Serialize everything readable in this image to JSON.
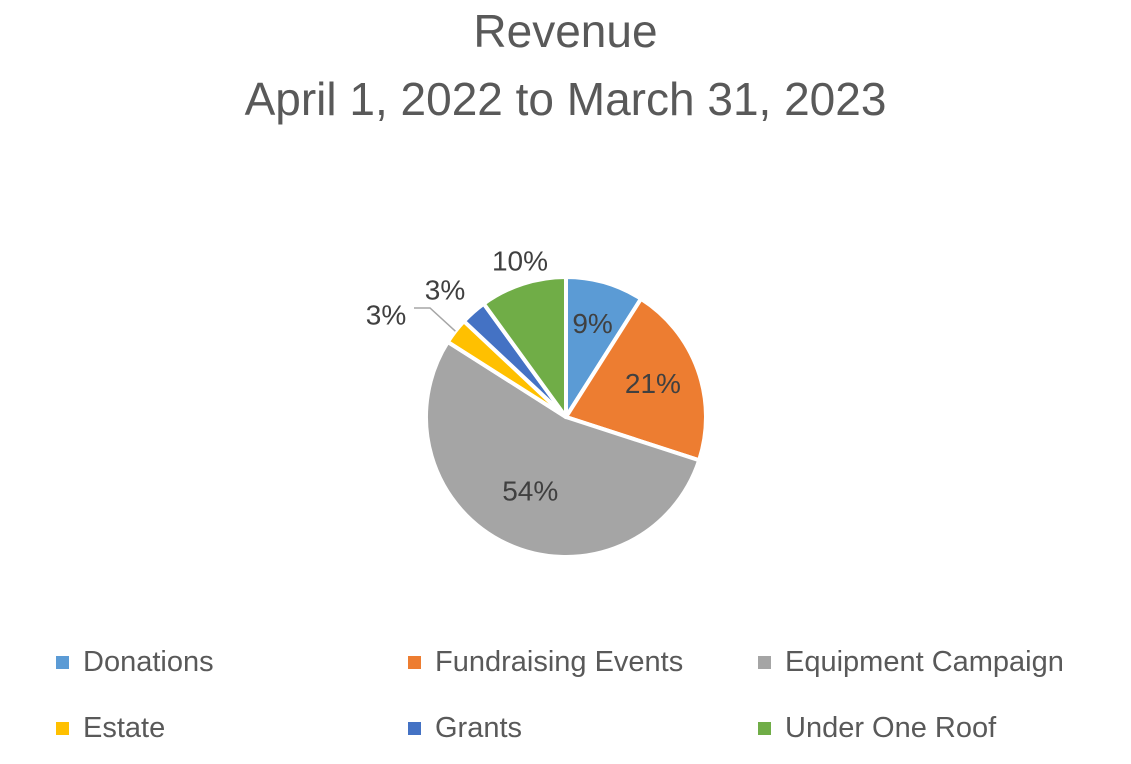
{
  "chart_data": {
    "type": "pie",
    "title": "Revenue",
    "subtitle": "April 1, 2022 to March 31, 2023",
    "slices": [
      {
        "name": "Donations",
        "value": 9,
        "label": "9%",
        "color": "#5B9BD5"
      },
      {
        "name": "Fundraising Events",
        "value": 21,
        "label": "21%",
        "color": "#ED7D31"
      },
      {
        "name": "Equipment Campaign",
        "value": 54,
        "label": "54%",
        "color": "#A5A5A5"
      },
      {
        "name": "Estate",
        "value": 3,
        "label": "3%",
        "color": "#FFC000"
      },
      {
        "name": "Grants",
        "value": 3,
        "label": "3%",
        "color": "#4472C4"
      },
      {
        "name": "Under One Roof",
        "value": 10,
        "label": "10%",
        "color": "#70AD47"
      }
    ],
    "legend_position": "bottom"
  }
}
